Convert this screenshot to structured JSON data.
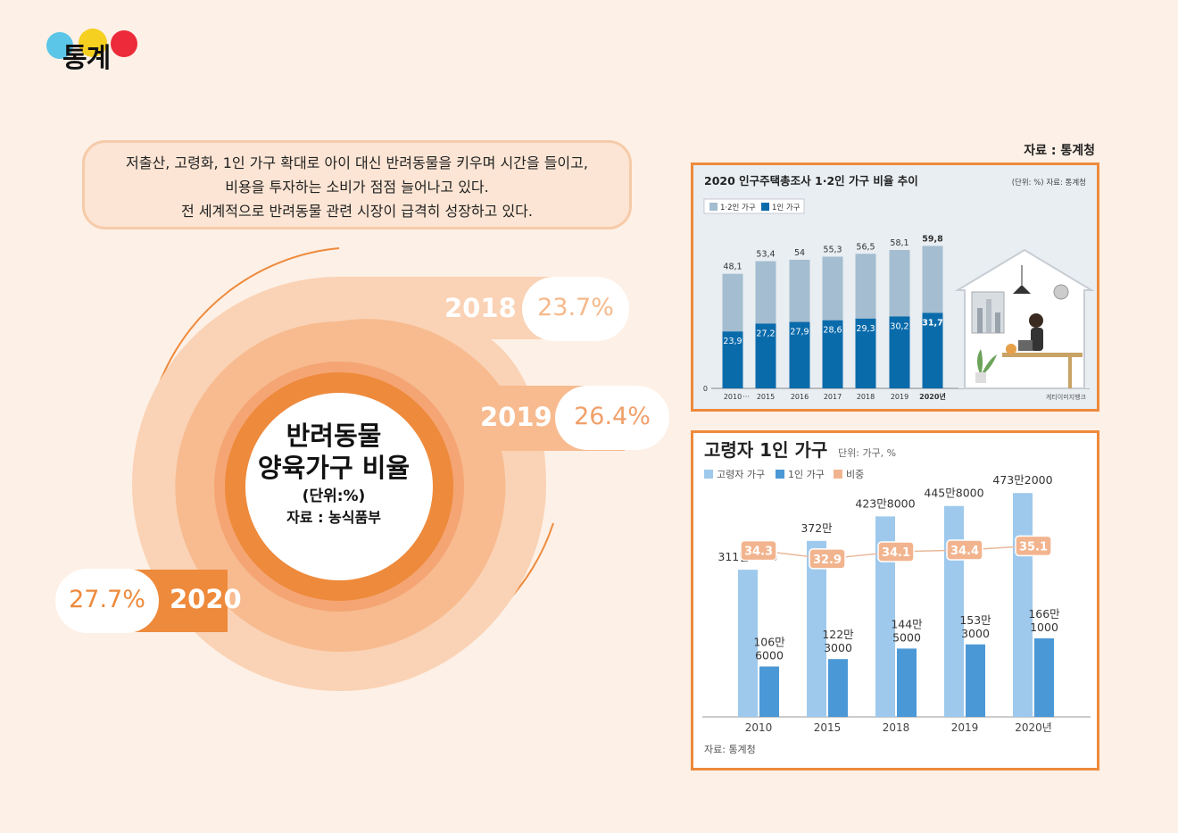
{
  "logo": {
    "text": "통계"
  },
  "source_top": "자료 : 통계청",
  "intro_lines": [
    "저출산, 고령화, 1인 가구 확대로 아이 대신 반려동물을 키우며 시간을 들이고,",
    "비용을 투자하는 소비가 점점 늘어나고 있다.",
    "전 세계적으로 반려동물 관련 시장이 급격히 성장하고 있다."
  ],
  "ring": {
    "title_line1": "반려동물",
    "title_line2": "양육가구 비율",
    "unit": "(단위:%)",
    "source": "자료 : 농식품부"
  },
  "colors": {
    "orange": "#ee8a3c",
    "light_orange": "#f7bb8f",
    "lighter_orange": "#fad2b5",
    "dark_blue": "#0a6bab",
    "grey_blue": "#a4bdd0",
    "light_blue": "#9ec9ec",
    "mid_blue": "#4b98d6",
    "peach": "#f2b48e"
  },
  "chart_data": [
    {
      "type": "radial-bar",
      "categories": [
        "2018",
        "2019",
        "2020"
      ],
      "values": [
        23.7,
        26.4,
        27.7
      ],
      "labels": [
        "23.7%",
        "26.4%",
        "27.7%"
      ],
      "title": "반려동물 양육가구 비율",
      "unit": "(단위:%)",
      "source": "자료 : 농식품부"
    },
    {
      "type": "bar",
      "title": "2020 인구주택총조사 1·2인 가구 비율 추이",
      "unit_note": "(단위: %) 자료: 통계청",
      "categories": [
        "2010",
        "2015",
        "2016",
        "2017",
        "2018",
        "2019",
        "2020년"
      ],
      "series": [
        {
          "name": "1·2인 가구",
          "values": [
            48.1,
            53.4,
            54,
            55.3,
            56.5,
            58.1,
            59.8
          ],
          "labels": [
            "48,1",
            "53,4",
            "54",
            "55,3",
            "56,5",
            "58,1",
            "59,8"
          ]
        },
        {
          "name": "1인 가구",
          "values": [
            23.9,
            27.2,
            27.9,
            28.6,
            29.3,
            30.2,
            31.7
          ],
          "labels": [
            "23,9",
            "27,2",
            "27,9",
            "28,6",
            "29,3",
            "30,2",
            "31,7"
          ]
        }
      ],
      "y_tick": "0",
      "axis_break": "···",
      "credit": "게티이미지뱅크",
      "ylim": [
        0,
        65
      ]
    },
    {
      "type": "bar+line",
      "title": "고령자 1인 가구",
      "unit": "단위: 가구, %",
      "categories": [
        "2010",
        "2015",
        "2018",
        "2019",
        "2020년"
      ],
      "series": [
        {
          "name": "고령자 가구",
          "values": [
            3111000,
            3720000,
            4238000,
            4458000,
            4732000
          ],
          "label_lines": [
            [
              "311만1000"
            ],
            [
              "372만"
            ],
            [
              "423만8000"
            ],
            [
              "445만8000"
            ],
            [
              "473만2000"
            ]
          ]
        },
        {
          "name": "1인 가구",
          "values": [
            1066000,
            1223000,
            1445000,
            1533000,
            1661000
          ],
          "label_lines": [
            [
              "106만",
              "6000"
            ],
            [
              "122만",
              "3000"
            ],
            [
              "144만",
              "5000"
            ],
            [
              "153만",
              "3000"
            ],
            [
              "166만",
              "1000"
            ]
          ]
        },
        {
          "name": "비중",
          "values": [
            34.3,
            32.9,
            34.1,
            34.4,
            35.1
          ],
          "labels": [
            "34.3",
            "32.9",
            "34.1",
            "34.4",
            "35.1"
          ]
        }
      ],
      "source": "자료: 통계청",
      "ylim": [
        0,
        5000000
      ]
    }
  ]
}
